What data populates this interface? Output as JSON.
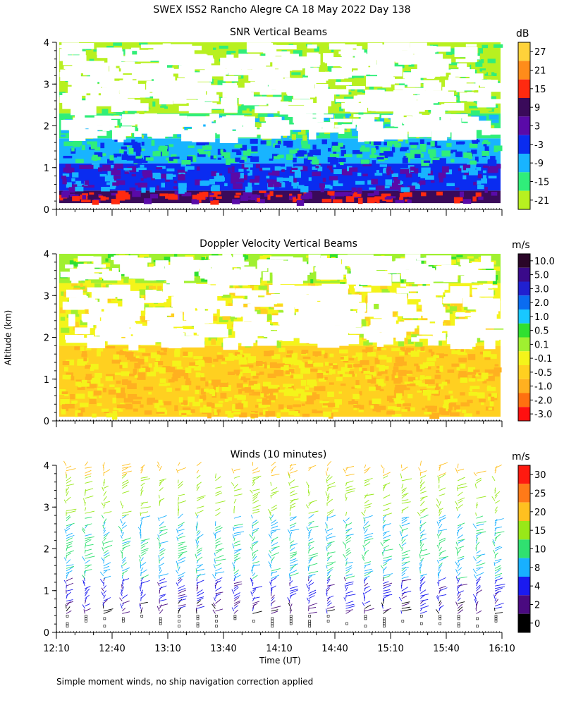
{
  "title": "SWEX ISS2 Rancho Alegre CA  18 May 2022 Day 138",
  "ylabel": "Altitude (km)",
  "xlabel": "Time (UT)",
  "footnote": "Simple moment winds, no ship navigation correction applied",
  "x_ticks": [
    "12:10",
    "12:40",
    "13:10",
    "13:40",
    "14:10",
    "14:40",
    "15:10",
    "15:40",
    "16:10"
  ],
  "chart_data": [
    {
      "type": "heatmap",
      "title": "SNR Vertical Beams",
      "units": "dB",
      "ylim": [
        0,
        4
      ],
      "y_ticks": [
        "0",
        "1",
        "2",
        "3",
        "4"
      ],
      "colorbar": {
        "labels": [
          "27",
          "21",
          "15",
          "9",
          "3",
          "-3",
          "-9",
          "-15",
          "-21"
        ],
        "colors": [
          "#ffd23a",
          "#ff8c1a",
          "#ff2a10",
          "#3a0a5a",
          "#5a0aa8",
          "#0a2cf0",
          "#18b4ff",
          "#30ee7a",
          "#b8f020"
        ]
      },
      "layers": [
        {
          "y": [
            0.15,
            0.45
          ],
          "level": "9"
        },
        {
          "y": [
            0.45,
            1.1
          ],
          "level": "-3"
        },
        {
          "y": [
            1.1,
            1.7
          ],
          "level": "-9"
        },
        {
          "y": [
            1.7,
            2.3
          ],
          "level": "-15"
        },
        {
          "y": [
            2.3,
            4.0
          ],
          "level": "-21"
        }
      ]
    },
    {
      "type": "heatmap",
      "title": "Doppler Velocity Vertical Beams",
      "units": "m/s",
      "ylim": [
        0,
        4
      ],
      "y_ticks": [
        "0",
        "1",
        "2",
        "3",
        "4"
      ],
      "colorbar": {
        "labels": [
          "10.0",
          "5.0",
          "3.0",
          "2.0",
          "1.0",
          "0.5",
          "0.1",
          "-0.1",
          "-0.5",
          "-1.0",
          "-2.0",
          "-3.0"
        ],
        "colors": [
          "#2a0628",
          "#3a0a8a",
          "#2020d0",
          "#0a6cf0",
          "#18c8ff",
          "#30e030",
          "#a0f030",
          "#f4f41a",
          "#ffd020",
          "#ffb020",
          "#ff7010",
          "#ff1010"
        ]
      },
      "layers": [
        {
          "y": [
            0.1,
            1.8
          ],
          "level": "-0.5"
        },
        {
          "y": [
            1.8,
            3.3
          ],
          "level": "-0.1"
        },
        {
          "y": [
            3.3,
            4.0
          ],
          "level": "0.1"
        }
      ]
    },
    {
      "type": "scatter",
      "title": "Winds (10 minutes)",
      "units": "m/s",
      "ylim": [
        0,
        4
      ],
      "y_ticks": [
        "0",
        "1",
        "2",
        "3",
        "4"
      ],
      "colorbar": {
        "labels": [
          "30",
          "25",
          "20",
          "15",
          "10",
          "8",
          "4",
          "2",
          "0"
        ],
        "colors": [
          "#ff1a10",
          "#ff7a18",
          "#ffc020",
          "#98e818",
          "#30e070",
          "#18b0ff",
          "#1a1af0",
          "#4a0a80",
          "#000000"
        ]
      },
      "profiles_x": [
        "12:10",
        "12:20",
        "12:30",
        "12:40",
        "12:50",
        "13:00",
        "13:10",
        "13:20",
        "13:30",
        "13:40",
        "13:50",
        "14:00",
        "14:10",
        "14:20",
        "14:30",
        "14:40",
        "14:50",
        "15:00",
        "15:10",
        "15:20",
        "15:30",
        "15:40",
        "15:50",
        "16:00"
      ],
      "speed_by_altitude": [
        {
          "alt": 0.5,
          "speed": 2
        },
        {
          "alt": 1.0,
          "speed": 4
        },
        {
          "alt": 1.5,
          "speed": 8
        },
        {
          "alt": 2.0,
          "speed": 10
        },
        {
          "alt": 2.5,
          "speed": 8
        },
        {
          "alt": 3.0,
          "speed": 15
        },
        {
          "alt": 3.5,
          "speed": 15
        },
        {
          "alt": 4.0,
          "speed": 20
        }
      ]
    }
  ]
}
